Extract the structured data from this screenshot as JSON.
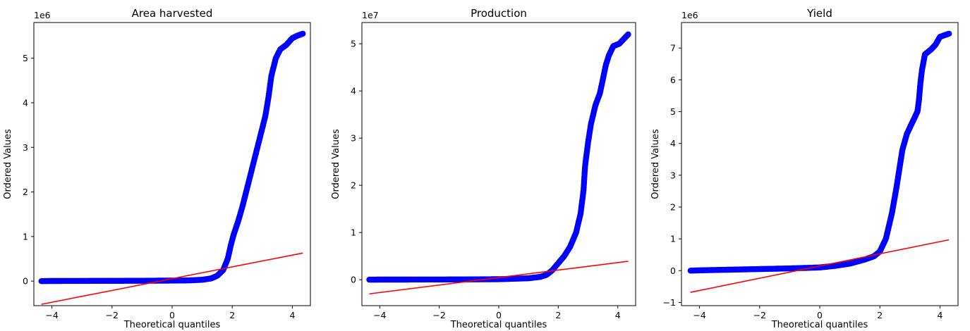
{
  "chart_data": [
    {
      "type": "scatter",
      "title": "Area harvested",
      "xlabel": "Theoretical quantiles",
      "ylabel": "Ordered Values",
      "y_offset_label": "1e6",
      "y_scale": 1000000,
      "xlim": [
        -4.6,
        4.6
      ],
      "ylim": [
        -0.55,
        5.8
      ],
      "xticks": [
        -4,
        -2,
        0,
        2,
        4
      ],
      "yticks": [
        0,
        1,
        2,
        3,
        4,
        5
      ],
      "grid": false,
      "series": [
        {
          "kind": "points",
          "color": "#0000ff",
          "points": [
            [
              -4.35,
              0.0
            ],
            [
              -4.0,
              0.003
            ],
            [
              -3.0,
              0.005
            ],
            [
              -2.0,
              0.006
            ],
            [
              -1.0,
              0.008
            ],
            [
              0.0,
              0.012
            ],
            [
              0.5,
              0.015
            ],
            [
              1.0,
              0.03
            ],
            [
              1.3,
              0.06
            ],
            [
              1.5,
              0.12
            ],
            [
              1.7,
              0.25
            ],
            [
              1.85,
              0.5
            ],
            [
              1.95,
              0.8
            ],
            [
              2.05,
              1.05
            ],
            [
              2.2,
              1.35
            ],
            [
              2.35,
              1.7
            ],
            [
              2.5,
              2.1
            ],
            [
              2.65,
              2.5
            ],
            [
              2.8,
              2.9
            ],
            [
              2.95,
              3.3
            ],
            [
              3.1,
              3.7
            ],
            [
              3.2,
              4.1
            ],
            [
              3.3,
              4.6
            ],
            [
              3.45,
              5.0
            ],
            [
              3.6,
              5.2
            ],
            [
              3.8,
              5.3
            ],
            [
              4.0,
              5.45
            ],
            [
              4.15,
              5.5
            ],
            [
              4.35,
              5.55
            ]
          ]
        },
        {
          "kind": "fit-line",
          "color": "#ff0000",
          "points": [
            [
              -4.35,
              -0.52
            ],
            [
              4.35,
              0.63
            ]
          ]
        }
      ]
    },
    {
      "type": "scatter",
      "title": "Production",
      "xlabel": "Theoretical quantiles",
      "ylabel": "Ordered Values",
      "y_offset_label": "1e7",
      "y_scale": 10000000,
      "xlim": [
        -4.6,
        4.6
      ],
      "ylim": [
        -0.55,
        5.45
      ],
      "xticks": [
        -4,
        -2,
        0,
        2,
        4
      ],
      "yticks": [
        0,
        1,
        2,
        3,
        4,
        5
      ],
      "grid": false,
      "series": [
        {
          "kind": "points",
          "color": "#0000ff",
          "points": [
            [
              -4.35,
              0.0
            ],
            [
              -4.0,
              0.002
            ],
            [
              -3.0,
              0.003
            ],
            [
              -2.0,
              0.004
            ],
            [
              -1.0,
              0.006
            ],
            [
              0.0,
              0.01
            ],
            [
              1.0,
              0.03
            ],
            [
              1.4,
              0.06
            ],
            [
              1.6,
              0.1
            ],
            [
              1.8,
              0.2
            ],
            [
              2.0,
              0.35
            ],
            [
              2.2,
              0.5
            ],
            [
              2.4,
              0.7
            ],
            [
              2.6,
              1.0
            ],
            [
              2.75,
              1.4
            ],
            [
              2.85,
              1.9
            ],
            [
              2.9,
              2.4
            ],
            [
              3.0,
              2.9
            ],
            [
              3.1,
              3.3
            ],
            [
              3.25,
              3.7
            ],
            [
              3.4,
              3.95
            ],
            [
              3.5,
              4.25
            ],
            [
              3.6,
              4.55
            ],
            [
              3.7,
              4.75
            ],
            [
              3.85,
              4.95
            ],
            [
              4.05,
              5.0
            ],
            [
              4.35,
              5.2
            ]
          ]
        },
        {
          "kind": "fit-line",
          "color": "#ff0000",
          "points": [
            [
              -4.35,
              -0.3
            ],
            [
              4.35,
              0.39
            ]
          ]
        }
      ]
    },
    {
      "type": "scatter",
      "title": "Yield",
      "xlabel": "Theoretical quantiles",
      "ylabel": "Ordered Values",
      "y_offset_label": "1e6",
      "y_scale": 1000000,
      "xlim": [
        -4.6,
        4.6
      ],
      "ylim": [
        -1.1,
        7.8
      ],
      "xticks": [
        -4,
        -2,
        0,
        2,
        4
      ],
      "yticks": [
        -1,
        0,
        1,
        2,
        3,
        4,
        5,
        6,
        7
      ],
      "grid": false,
      "series": [
        {
          "kind": "points",
          "color": "#0000ff",
          "points": [
            [
              -4.3,
              0.0
            ],
            [
              -4.0,
              0.01
            ],
            [
              -3.0,
              0.03
            ],
            [
              -2.0,
              0.05
            ],
            [
              -1.0,
              0.07
            ],
            [
              0.0,
              0.1
            ],
            [
              0.5,
              0.15
            ],
            [
              1.0,
              0.22
            ],
            [
              1.5,
              0.35
            ],
            [
              1.8,
              0.45
            ],
            [
              2.0,
              0.6
            ],
            [
              2.2,
              1.0
            ],
            [
              2.4,
              1.8
            ],
            [
              2.55,
              2.6
            ],
            [
              2.65,
              3.2
            ],
            [
              2.75,
              3.8
            ],
            [
              2.9,
              4.3
            ],
            [
              3.1,
              4.7
            ],
            [
              3.25,
              5.0
            ],
            [
              3.3,
              5.35
            ],
            [
              3.35,
              5.9
            ],
            [
              3.4,
              6.3
            ],
            [
              3.5,
              6.8
            ],
            [
              3.7,
              6.95
            ],
            [
              3.85,
              7.1
            ],
            [
              4.0,
              7.35
            ],
            [
              4.3,
              7.45
            ]
          ]
        },
        {
          "kind": "fit-line",
          "color": "#ff0000",
          "points": [
            [
              -4.3,
              -0.68
            ],
            [
              4.3,
              0.97
            ]
          ]
        }
      ]
    }
  ]
}
